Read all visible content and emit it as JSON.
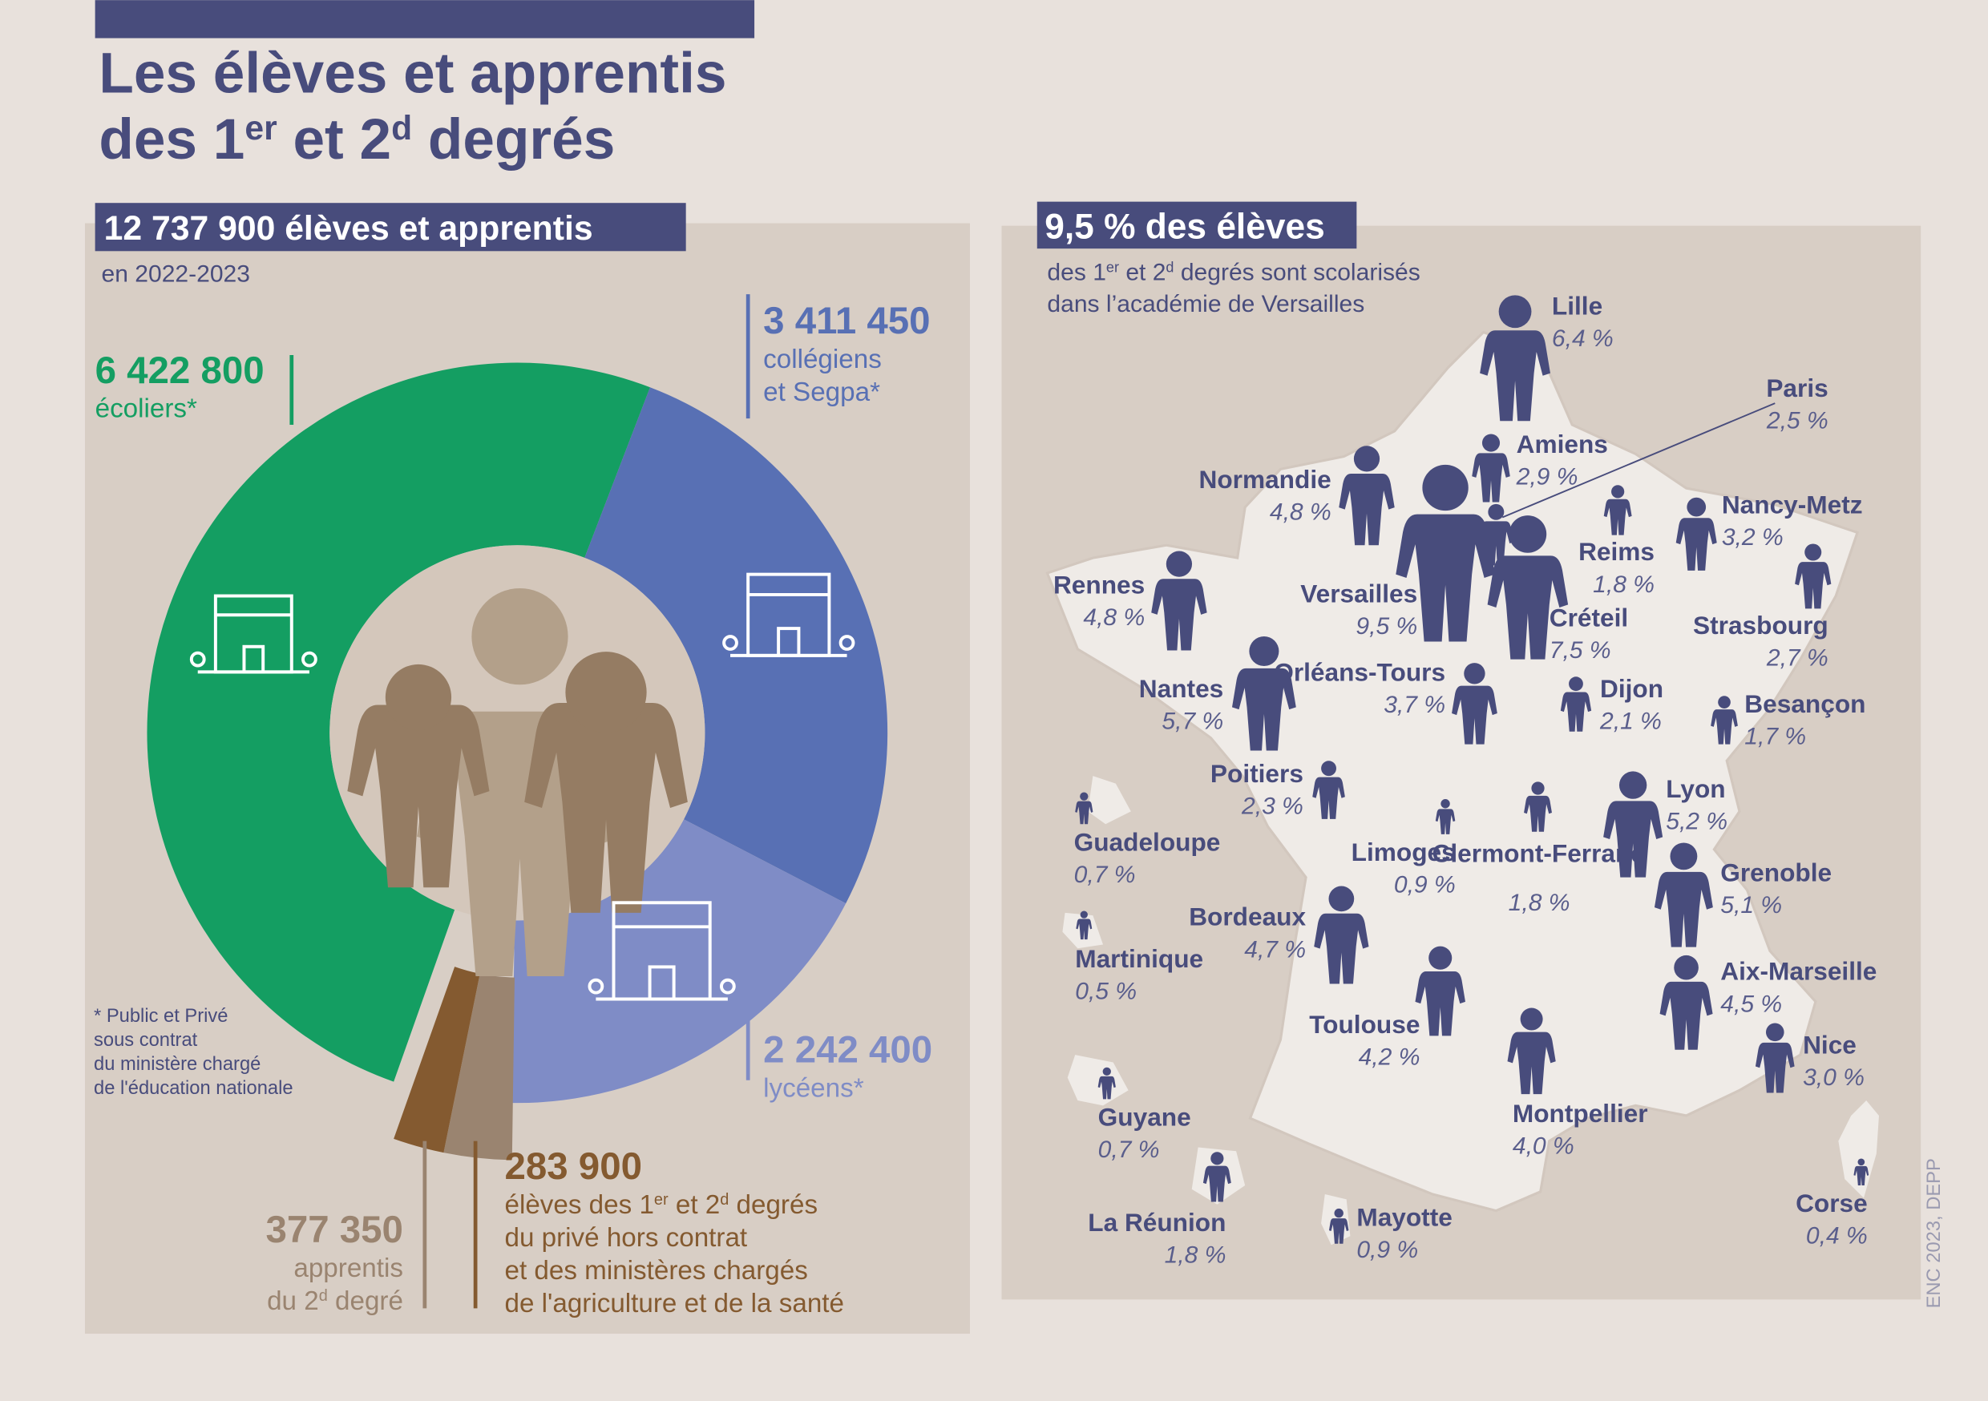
{
  "title": [
    [
      "Les élèves et apprentis"
    ],
    [
      "des 1",
      "er",
      " et 2",
      "d",
      " degrés"
    ]
  ],
  "chart_data": [
    {
      "type": "donut",
      "title": "12 737 900 élèves et apprentis",
      "subtitle": "en 2022-2023",
      "categories": [
        [
          [
            "écoliers*"
          ]
        ],
        [
          [
            "collégiens"
          ],
          [
            "et Segpa*"
          ]
        ],
        [
          [
            "lycéens*"
          ]
        ],
        [
          [
            "apprentis"
          ],
          [
            "du 2",
            "d",
            " degré"
          ]
        ],
        [
          [
            "élèves des 1",
            "er",
            " et 2",
            "d",
            " degrés"
          ],
          [
            "du privé hors contrat"
          ],
          [
            "et des ministères chargés"
          ],
          [
            "de l'agriculture et de la santé"
          ]
        ]
      ],
      "values": [
        6422800,
        3411450,
        2242400,
        377350,
        283900
      ],
      "value_labels": [
        "6 422 800",
        "3 411 450",
        "2 242 400",
        "377 350",
        "283 900"
      ],
      "colors": [
        "#149e62",
        "#5870b4",
        "#7f8cc6",
        "#9a8470",
        "#845a30"
      ],
      "note": [
        [
          "* Public et Privé"
        ],
        [
          "sous contrat"
        ],
        [
          "du ministère chargé"
        ],
        [
          "de l'éducation nationale"
        ]
      ]
    },
    {
      "type": "pictogram-map",
      "title": "9,5 % des élèves",
      "subtitle": [
        [
          "des 1",
          "er",
          " et 2",
          "d",
          " degrés sont scolarisés"
        ],
        [
          "dans l’académie de Versailles"
        ]
      ],
      "categories": [
        "Lille",
        "Paris",
        "Amiens",
        "Normandie",
        "Reims",
        "Nancy-Metz",
        "Strasbourg",
        "Rennes",
        "Versailles",
        "Créteil",
        "Nantes",
        "Orléans-Tours",
        "Dijon",
        "Besançon",
        "Poitiers",
        "Limoges",
        "Clermont-Ferrand",
        "Lyon",
        "Grenoble",
        "Bordeaux",
        "Toulouse",
        "Montpellier",
        "Aix-Marseille",
        "Nice",
        "Corse",
        "Guadeloupe",
        "Martinique",
        "Guyane",
        "La Réunion",
        "Mayotte"
      ],
      "values": [
        6.4,
        2.5,
        2.9,
        4.8,
        1.8,
        3.2,
        2.7,
        4.8,
        9.5,
        7.5,
        5.7,
        3.7,
        2.1,
        1.7,
        2.3,
        0.9,
        1.8,
        5.2,
        5.1,
        4.7,
        4.2,
        4.0,
        4.5,
        3.0,
        0.4,
        0.7,
        0.5,
        0.7,
        1.8,
        0.9
      ],
      "value_labels": [
        "6,4 %",
        "2,5 %",
        "2,9 %",
        "4,8 %",
        "1,8 %",
        "3,2 %",
        "2,7 %",
        "4,8 %",
        "9,5 %",
        "7,5 %",
        "5,7 %",
        "3,7 %",
        "2,1 %",
        "1,7 %",
        "2,3 %",
        "0,9 %",
        "1,8 %",
        "5,2 %",
        "5,1 %",
        "4,7 %",
        "4,2 %",
        "4,0 %",
        "4,5 %",
        "3,0 %",
        "0,4 %",
        "0,7 %",
        "0,5 %",
        "0,7 %",
        "1,8 %",
        "0,9 %"
      ],
      "color": "#484c7c"
    }
  ],
  "source": "ENC 2023, DEPP"
}
